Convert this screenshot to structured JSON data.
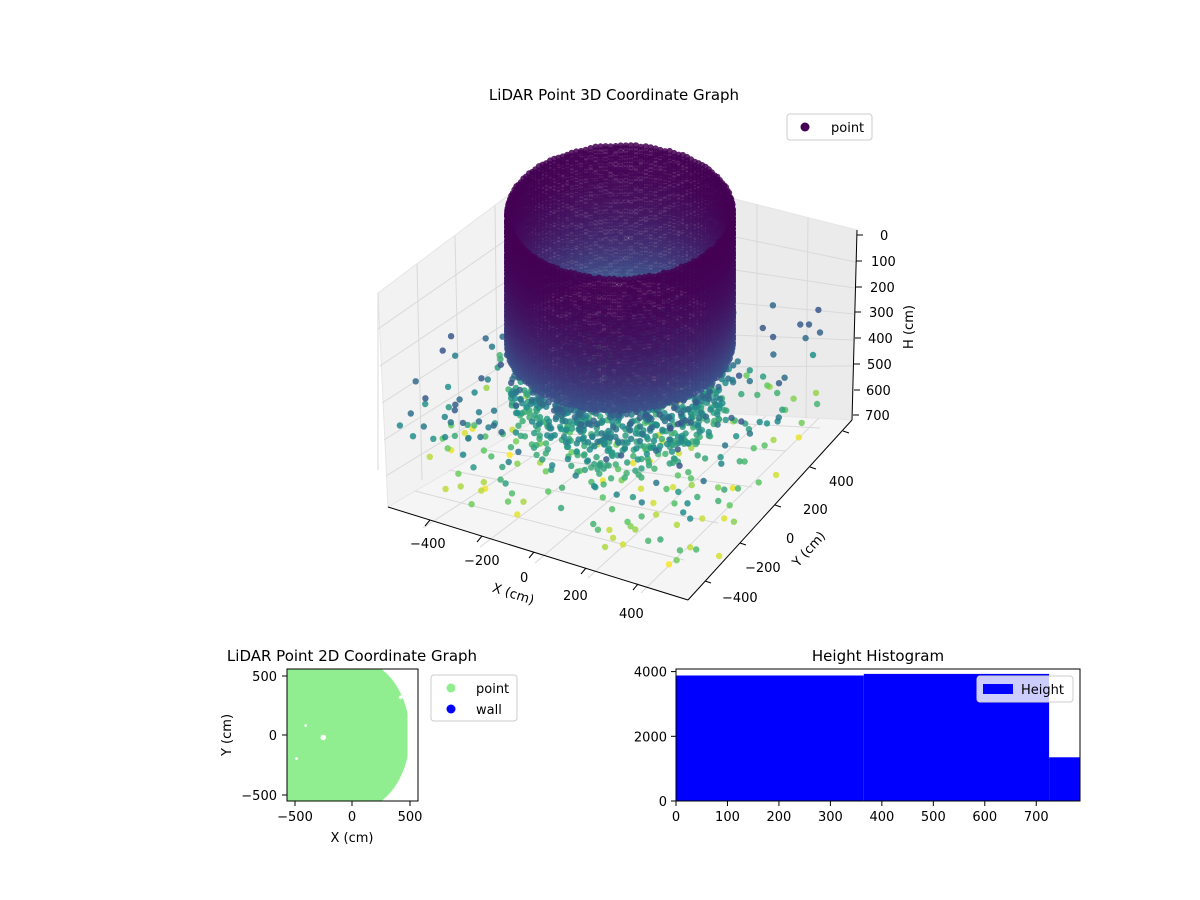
{
  "colors": {
    "viridis_dark": "#440154",
    "viridis_mid": "#31688e",
    "viridis_light": "#d0e11c",
    "hist_bar": "#0000ff",
    "point_2d": "#90ee90",
    "wall_2d": "#0000ff",
    "pane": "#f2f2f2",
    "grid": "#d9d9d9"
  },
  "chart_data": [
    {
      "type": "scatter",
      "projection": "3d",
      "title": "LiDAR Point 3D Coordinate Graph",
      "xlabel": "X (cm)",
      "ylabel": "Y (cm)",
      "zlabel": "H (cm)",
      "x_ticks": [
        "−400",
        "−200",
        "0",
        "200",
        "400"
      ],
      "y_ticks": [
        "−400",
        "−200",
        "0",
        "200",
        "400"
      ],
      "z_ticks": [
        "0",
        "100",
        "200",
        "300",
        "400",
        "500",
        "600",
        "700"
      ],
      "z_inverted": true,
      "xlim": [
        -500,
        500
      ],
      "ylim": [
        -500,
        500
      ],
      "zlim": [
        0,
        750
      ],
      "colormap": "viridis",
      "legend": {
        "position": "top-right",
        "entries": [
          "point"
        ]
      },
      "series": [
        {
          "name": "point",
          "structures": [
            {
              "shape": "cylindrical wall",
              "radius": 330,
              "h_range": [
                0,
                400
              ]
            },
            {
              "shape": "ground surface",
              "h_range": [
                400,
                620
              ]
            },
            {
              "shape": "scattered outliers",
              "x_range": [
                -500,
                500
              ],
              "y_range": [
                -500,
                500
              ],
              "h_range": [
                400,
                750
              ]
            }
          ]
        }
      ]
    },
    {
      "type": "scatter",
      "title": "LiDAR Point 2D Coordinate Graph",
      "xlabel": "X (cm)",
      "ylabel": "Y (cm)",
      "x_ticks": [
        "−500",
        "0",
        "500"
      ],
      "y_ticks": [
        "−500",
        "0",
        "500"
      ],
      "xlim": [
        -560,
        560
      ],
      "ylim": [
        -560,
        560
      ],
      "legend": {
        "position": "outside right",
        "entries": [
          "point",
          "wall"
        ]
      },
      "series": [
        {
          "name": "point",
          "color": "#90ee90",
          "coverage": "dense filled region x −560…470, y −560…560"
        },
        {
          "name": "wall",
          "color": "#0000ff",
          "values": []
        }
      ]
    },
    {
      "type": "bar",
      "title": "Height Histogram",
      "x_ticks": [
        "0",
        "100",
        "200",
        "300",
        "400",
        "500",
        "600",
        "700"
      ],
      "y_ticks": [
        "0",
        "2000",
        "4000"
      ],
      "xlim": [
        0,
        785
      ],
      "ylim": [
        0,
        4080
      ],
      "legend": {
        "position": "top-right",
        "entries": [
          "Height"
        ]
      },
      "series": [
        {
          "name": "Height",
          "bins": [
            {
              "x0": 0,
              "x1": 365,
              "count": 3880
            },
            {
              "x0": 365,
              "x1": 725,
              "count": 3930
            },
            {
              "x0": 725,
              "x1": 785,
              "count": 1350
            }
          ]
        }
      ]
    }
  ]
}
